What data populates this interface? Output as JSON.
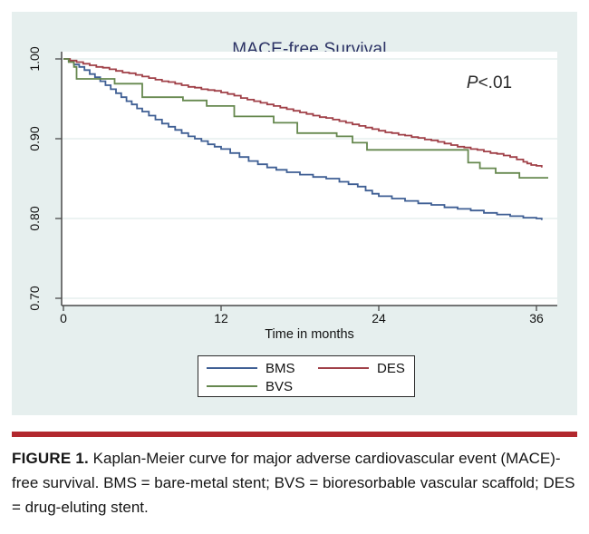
{
  "figure": {
    "title": "MACE-free Survival",
    "p_annotation": {
      "prefix": "P",
      "rest": "<.01"
    }
  },
  "chart_data": {
    "type": "line",
    "subtype": "kaplan-meier-step",
    "title": "MACE-free Survival",
    "xlabel": "Time in months",
    "ylabel": "",
    "xlim": [
      0,
      37.5
    ],
    "ylim": [
      0.69,
      1.01
    ],
    "x_ticks": [
      0,
      12,
      24,
      36
    ],
    "y_ticks": [
      1.0,
      0.9,
      0.8,
      0.7
    ],
    "x_tick_labels": [
      "0",
      "12",
      "24",
      "36"
    ],
    "y_tick_labels": [
      "1.00",
      "0.90",
      "0.80",
      "0.70"
    ],
    "grid": "horizontal",
    "annotation": "P<.01",
    "legend_position": "bottom",
    "series": [
      {
        "name": "BMS",
        "color": "#3f5f94",
        "points": [
          [
            0,
            1.0
          ],
          [
            0.4,
            0.997
          ],
          [
            0.8,
            0.993
          ],
          [
            1.2,
            0.99
          ],
          [
            1.6,
            0.986
          ],
          [
            2,
            0.981
          ],
          [
            2.4,
            0.977
          ],
          [
            2.8,
            0.972
          ],
          [
            3.2,
            0.967
          ],
          [
            3.6,
            0.962
          ],
          [
            4,
            0.957
          ],
          [
            4.4,
            0.952
          ],
          [
            4.8,
            0.947
          ],
          [
            5.2,
            0.943
          ],
          [
            5.6,
            0.938
          ],
          [
            6,
            0.934
          ],
          [
            6.5,
            0.929
          ],
          [
            7,
            0.924
          ],
          [
            7.5,
            0.919
          ],
          [
            8,
            0.915
          ],
          [
            8.5,
            0.911
          ],
          [
            9,
            0.907
          ],
          [
            9.5,
            0.903
          ],
          [
            10,
            0.9
          ],
          [
            10.5,
            0.897
          ],
          [
            11,
            0.893
          ],
          [
            11.5,
            0.89
          ],
          [
            12,
            0.887
          ],
          [
            12.7,
            0.882
          ],
          [
            13.4,
            0.877
          ],
          [
            14.1,
            0.872
          ],
          [
            14.8,
            0.868
          ],
          [
            15.5,
            0.864
          ],
          [
            16.2,
            0.861
          ],
          [
            17,
            0.858
          ],
          [
            18,
            0.855
          ],
          [
            19,
            0.852
          ],
          [
            20,
            0.85
          ],
          [
            21,
            0.846
          ],
          [
            21.7,
            0.843
          ],
          [
            22.4,
            0.84
          ],
          [
            23,
            0.835
          ],
          [
            23.5,
            0.831
          ],
          [
            24,
            0.828
          ],
          [
            25,
            0.825
          ],
          [
            26,
            0.822
          ],
          [
            27,
            0.819
          ],
          [
            28,
            0.817
          ],
          [
            29,
            0.814
          ],
          [
            30,
            0.812
          ],
          [
            31,
            0.81
          ],
          [
            32,
            0.807
          ],
          [
            33,
            0.805
          ],
          [
            34,
            0.803
          ],
          [
            35,
            0.801
          ],
          [
            36,
            0.8
          ],
          [
            36.4,
            0.798
          ]
        ]
      },
      {
        "name": "DES",
        "color": "#a04048",
        "points": [
          [
            0,
            1.0
          ],
          [
            0.5,
            0.998
          ],
          [
            1,
            0.996
          ],
          [
            1.5,
            0.994
          ],
          [
            2,
            0.992
          ],
          [
            2.5,
            0.99
          ],
          [
            3,
            0.989
          ],
          [
            3.5,
            0.987
          ],
          [
            4,
            0.985
          ],
          [
            4.5,
            0.983
          ],
          [
            5,
            0.982
          ],
          [
            5.5,
            0.98
          ],
          [
            6,
            0.978
          ],
          [
            6.5,
            0.976
          ],
          [
            7,
            0.974
          ],
          [
            7.5,
            0.972
          ],
          [
            8,
            0.971
          ],
          [
            8.5,
            0.969
          ],
          [
            9,
            0.967
          ],
          [
            9.5,
            0.965
          ],
          [
            10,
            0.964
          ],
          [
            10.5,
            0.962
          ],
          [
            11,
            0.961
          ],
          [
            11.5,
            0.96
          ],
          [
            12,
            0.958
          ],
          [
            12.5,
            0.956
          ],
          [
            13,
            0.954
          ],
          [
            13.5,
            0.951
          ],
          [
            14,
            0.949
          ],
          [
            14.5,
            0.947
          ],
          [
            15,
            0.945
          ],
          [
            15.5,
            0.943
          ],
          [
            16,
            0.941
          ],
          [
            16.5,
            0.939
          ],
          [
            17,
            0.937
          ],
          [
            17.5,
            0.935
          ],
          [
            18,
            0.933
          ],
          [
            18.5,
            0.931
          ],
          [
            19,
            0.929
          ],
          [
            19.5,
            0.927
          ],
          [
            20,
            0.926
          ],
          [
            20.5,
            0.924
          ],
          [
            21,
            0.922
          ],
          [
            21.5,
            0.92
          ],
          [
            22,
            0.918
          ],
          [
            22.5,
            0.916
          ],
          [
            23,
            0.914
          ],
          [
            23.5,
            0.912
          ],
          [
            24,
            0.91
          ],
          [
            24.5,
            0.908
          ],
          [
            25,
            0.907
          ],
          [
            25.5,
            0.905
          ],
          [
            26,
            0.904
          ],
          [
            26.5,
            0.902
          ],
          [
            27,
            0.901
          ],
          [
            27.5,
            0.899
          ],
          [
            28,
            0.898
          ],
          [
            28.5,
            0.896
          ],
          [
            29,
            0.894
          ],
          [
            29.5,
            0.892
          ],
          [
            30,
            0.89
          ],
          [
            30.5,
            0.889
          ],
          [
            31,
            0.887
          ],
          [
            31.5,
            0.886
          ],
          [
            32,
            0.884
          ],
          [
            32.5,
            0.882
          ],
          [
            33,
            0.881
          ],
          [
            33.5,
            0.879
          ],
          [
            34,
            0.877
          ],
          [
            34.5,
            0.874
          ],
          [
            35,
            0.871
          ],
          [
            35.3,
            0.869
          ],
          [
            35.6,
            0.867
          ],
          [
            36,
            0.866
          ],
          [
            36.4,
            0.864
          ]
        ]
      },
      {
        "name": "BVS",
        "color": "#66884f",
        "points": [
          [
            0,
            1.0
          ],
          [
            0.4,
            0.996
          ],
          [
            0.8,
            0.99
          ],
          [
            1.0,
            0.975
          ],
          [
            3.9,
            0.969
          ],
          [
            6.0,
            0.952
          ],
          [
            9.1,
            0.948
          ],
          [
            10.9,
            0.941
          ],
          [
            13.0,
            0.928
          ],
          [
            16.0,
            0.92
          ],
          [
            17.8,
            0.907
          ],
          [
            20.8,
            0.903
          ],
          [
            22.0,
            0.895
          ],
          [
            23.1,
            0.886
          ],
          [
            30.8,
            0.87
          ],
          [
            31.7,
            0.863
          ],
          [
            32.9,
            0.857
          ],
          [
            34.7,
            0.851
          ],
          [
            36.9,
            0.851
          ]
        ]
      }
    ]
  },
  "legend": {
    "items": [
      {
        "label": "BMS",
        "color": "#3f5f94"
      },
      {
        "label": "DES",
        "color": "#a04048"
      },
      {
        "label": "BVS",
        "color": "#66884f"
      }
    ]
  },
  "caption": {
    "label": "FIGURE 1.",
    "text": " Kaplan-Meier curve for major adverse cardiovascular event (MACE)-free survival. BMS = bare-metal stent; BVS = bioresorbable vascular scaffold; DES = drug-eluting stent."
  },
  "colors": {
    "panel_background": "#e6efee",
    "plot_background": "#ffffff",
    "gridline": "#e0ecea",
    "axis": "#4a4a4a",
    "title": "#2c3365",
    "divider_red": "#b2282e"
  }
}
